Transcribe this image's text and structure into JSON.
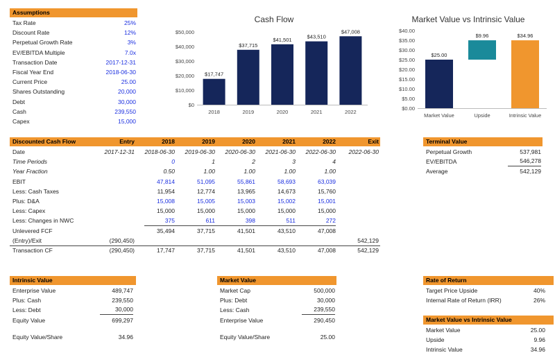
{
  "colors": {
    "header": "#f0962e",
    "navy": "#15265a",
    "teal": "#1a8a9a",
    "orange": "#f0962e",
    "blue_text": "#1a2ee0"
  },
  "assumptions": {
    "title": "Assumptions",
    "rows": [
      {
        "label": "Tax Rate",
        "value": "25%",
        "blue": true
      },
      {
        "label": "Discount Rate",
        "value": "12%",
        "blue": true
      },
      {
        "label": "Perpetual Growth Rate",
        "value": "3%",
        "blue": true
      },
      {
        "label": "EV/EBITDA Multiple",
        "value": "7.0x",
        "blue": true
      },
      {
        "label": "Transaction Date",
        "value": "2017-12-31",
        "blue": true
      },
      {
        "label": "Fiscal Year End",
        "value": "2018-06-30",
        "blue": true
      },
      {
        "label": "Current Price",
        "value": "25.00",
        "blue": true
      },
      {
        "label": "Shares Outstanding",
        "value": "20,000",
        "blue": true
      },
      {
        "label": "Debt",
        "value": "30,000",
        "blue": true
      },
      {
        "label": "Cash",
        "value": "239,550",
        "blue": true
      },
      {
        "label": "Capex",
        "value": "15,000",
        "blue": true
      }
    ]
  },
  "chart_data": [
    {
      "type": "bar",
      "title": "Cash Flow",
      "categories": [
        "2018",
        "2019",
        "2020",
        "2021",
        "2022"
      ],
      "values": [
        17747,
        37715,
        41501,
        43510,
        47008
      ],
      "value_labels": [
        "$17,747",
        "$37,715",
        "$41,501",
        "$43,510",
        "$47,008"
      ],
      "yticks": [
        "$0",
        "$10,000",
        "$20,000",
        "$30,000",
        "$40,000",
        "$50,000"
      ],
      "ylim": [
        0,
        50000
      ],
      "color": "#15265a"
    },
    {
      "type": "bar",
      "title": "Market Value vs Intrinsic Value",
      "categories": [
        "Market Value",
        "Upside",
        "Intrinsic Value"
      ],
      "values": [
        25.0,
        9.96,
        34.96
      ],
      "bases": [
        0,
        25.0,
        0
      ],
      "value_labels": [
        "$25.00",
        "$9.96",
        "$34.96"
      ],
      "colors": [
        "#15265a",
        "#1a8a9a",
        "#f0962e"
      ],
      "yticks": [
        "$0.00",
        "$5.00",
        "$10.00",
        "$15.00",
        "$20.00",
        "$25.00",
        "$30.00",
        "$35.00",
        "$40.00"
      ],
      "ylim": [
        0,
        40
      ]
    }
  ],
  "dcf": {
    "title": "Discounted Cash Flow",
    "headers": [
      "Entry",
      "2018",
      "2019",
      "2020",
      "2021",
      "2022",
      "Exit"
    ],
    "rows": [
      {
        "label": "Date",
        "cells": [
          "2017-12-31",
          "2018-06-30",
          "2019-06-30",
          "2020-06-30",
          "2021-06-30",
          "2022-06-30",
          "2022-06-30"
        ],
        "italic": true,
        "blue": false
      },
      {
        "label": "Time Periods",
        "cells": [
          "",
          "0",
          "1",
          "2",
          "3",
          "4",
          ""
        ],
        "italic": true,
        "label_italic": true,
        "blue_cells": [
          1
        ]
      },
      {
        "label": "Year Fraction",
        "cells": [
          "",
          "0.50",
          "1.00",
          "1.00",
          "1.00",
          "1.00",
          ""
        ],
        "italic": true,
        "label_italic": true
      },
      {
        "label": "EBIT",
        "cells": [
          "",
          "47,814",
          "51,095",
          "55,861",
          "58,693",
          "63,039",
          ""
        ],
        "blue_row": true
      },
      {
        "label": "Less: Cash Taxes",
        "cells": [
          "",
          "11,954",
          "12,774",
          "13,965",
          "14,673",
          "15,760",
          ""
        ]
      },
      {
        "label": "Plus: D&A",
        "cells": [
          "",
          "15,008",
          "15,005",
          "15,003",
          "15,002",
          "15,001",
          ""
        ],
        "blue_row": true
      },
      {
        "label": "Less: Capex",
        "cells": [
          "",
          "15,000",
          "15,000",
          "15,000",
          "15,000",
          "15,000",
          ""
        ]
      },
      {
        "label": "Less: Changes in NWC",
        "cells": [
          "",
          "375",
          "611",
          "398",
          "511",
          "272",
          ""
        ],
        "blue_row": true,
        "underline": true
      },
      {
        "label": "Unlevered FCF",
        "cells": [
          "",
          "35,494",
          "37,715",
          "41,501",
          "43,510",
          "47,008",
          ""
        ]
      },
      {
        "label": "(Entry)/Exit",
        "cells": [
          "(290,450)",
          "",
          "",
          "",
          "",
          "",
          "542,129"
        ],
        "underline_all": true
      },
      {
        "label": "Transaction CF",
        "cells": [
          "(290,450)",
          "17,747",
          "37,715",
          "41,501",
          "43,510",
          "47,008",
          "542,129"
        ]
      }
    ]
  },
  "terminal": {
    "title": "Terminal Value",
    "rows": [
      {
        "label": "Perpetual Growth",
        "value": "537,981"
      },
      {
        "label": "EV/EBITDA",
        "value": "546,278"
      },
      {
        "label": "Average",
        "value": "542,129"
      }
    ]
  },
  "intrinsic": {
    "title": "Intrinsic Value",
    "rows": [
      {
        "label": "Enterprise Value",
        "value": "489,747"
      },
      {
        "label": "Plus: Cash",
        "value": "239,550"
      },
      {
        "label": "Less: Debt",
        "value": "30,000"
      },
      {
        "label": "Equity Value",
        "value": "699,297"
      },
      {
        "label": "Equity Value/Share",
        "value": "34.96"
      }
    ]
  },
  "market": {
    "title": "Market Value",
    "rows": [
      {
        "label": "Market Cap",
        "value": "500,000"
      },
      {
        "label": "Plus: Debt",
        "value": "30,000"
      },
      {
        "label": "Less: Cash",
        "value": "239,550"
      },
      {
        "label": "Enterprise Value",
        "value": "290,450"
      },
      {
        "label": "Equity Value/Share",
        "value": "25.00"
      }
    ]
  },
  "ror": {
    "title": "Rate of Return",
    "rows": [
      {
        "label": "Target Price Upside",
        "value": "40%"
      },
      {
        "label": "Internal Rate of Return (IRR)",
        "value": "26%"
      }
    ]
  },
  "mvi": {
    "title": "Market Value vs Intrinsic Value",
    "rows": [
      {
        "label": "Market Value",
        "value": "25.00"
      },
      {
        "label": "Upside",
        "value": "9.96"
      },
      {
        "label": "Intrinsic Value",
        "value": "34.96"
      }
    ]
  }
}
